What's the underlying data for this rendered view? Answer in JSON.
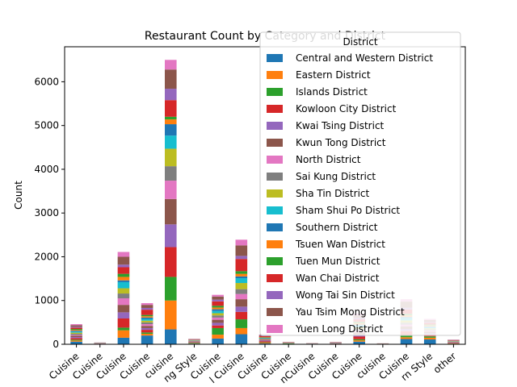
{
  "chart_data": {
    "type": "bar",
    "stacked": true,
    "title": "Restaurant Count by Category and District",
    "xlabel": "",
    "ylabel": "Count",
    "ylim": [
      0,
      6800
    ],
    "yticks": [
      0,
      1000,
      2000,
      3000,
      4000,
      5000,
      6000
    ],
    "grid": false,
    "legend": {
      "title": "District",
      "placement": "top-right"
    },
    "categories": [
      "Cuisine",
      "Cuisine",
      "Cuisine",
      "Cuisine",
      "cuisine",
      "ng Style",
      "Cuisine",
      "l Cuisine",
      "Cuisine",
      "Cuisine",
      "nCuisine",
      "Cuisine",
      "Cuisine",
      "cuisine",
      "Cuisine",
      "rn Style",
      "other"
    ],
    "series": [
      {
        "name": "Central and Western District",
        "color": "#1f77b4",
        "values": [
          60,
          5,
          150,
          200,
          340,
          15,
          130,
          230,
          20,
          6,
          3,
          5,
          60,
          2,
          120,
          110,
          10
        ]
      },
      {
        "name": "Eastern District",
        "color": "#ff7f0e",
        "values": [
          25,
          2,
          170,
          40,
          660,
          8,
          90,
          140,
          15,
          5,
          2,
          4,
          30,
          1,
          40,
          40,
          6
        ]
      },
      {
        "name": "Islands District",
        "color": "#2ca02c",
        "values": [
          20,
          2,
          60,
          30,
          540,
          12,
          150,
          200,
          10,
          8,
          2,
          3,
          25,
          1,
          50,
          30,
          5
        ]
      },
      {
        "name": "Kowloon City District",
        "color": "#d62728",
        "values": [
          35,
          3,
          210,
          60,
          680,
          10,
          60,
          170,
          25,
          4,
          3,
          5,
          60,
          2,
          90,
          45,
          10
        ]
      },
      {
        "name": "Kwai Tsing District",
        "color": "#9467bd",
        "values": [
          25,
          2,
          140,
          40,
          520,
          8,
          60,
          120,
          15,
          3,
          2,
          3,
          40,
          1,
          50,
          30,
          6
        ]
      },
      {
        "name": "Kwun Tong District",
        "color": "#8c564b",
        "values": [
          30,
          3,
          170,
          50,
          580,
          10,
          70,
          170,
          15,
          3,
          2,
          4,
          55,
          1,
          60,
          35,
          8
        ]
      },
      {
        "name": "North District",
        "color": "#e377c2",
        "values": [
          20,
          2,
          150,
          40,
          420,
          6,
          50,
          120,
          10,
          2,
          1,
          2,
          40,
          1,
          40,
          25,
          5
        ]
      },
      {
        "name": "Sai Kung District",
        "color": "#7f7f7f",
        "values": [
          25,
          2,
          110,
          40,
          330,
          5,
          50,
          110,
          10,
          2,
          1,
          3,
          40,
          1,
          45,
          25,
          5
        ]
      },
      {
        "name": "Sha Tin District",
        "color": "#bcbd22",
        "values": [
          25,
          2,
          120,
          40,
          400,
          6,
          50,
          140,
          10,
          2,
          1,
          3,
          40,
          1,
          50,
          25,
          5
        ]
      },
      {
        "name": "Sham Shui Po District",
        "color": "#17becf",
        "values": [
          25,
          2,
          140,
          40,
          300,
          5,
          50,
          110,
          10,
          2,
          1,
          3,
          40,
          1,
          55,
          25,
          5
        ]
      },
      {
        "name": "Southern District",
        "color": "#1f77b4",
        "values": [
          20,
          2,
          40,
          30,
          260,
          5,
          40,
          40,
          8,
          2,
          1,
          2,
          20,
          1,
          25,
          20,
          4
        ]
      },
      {
        "name": "Tsuen Wan District",
        "color": "#ff7f0e",
        "values": [
          20,
          2,
          80,
          30,
          110,
          4,
          40,
          60,
          8,
          2,
          1,
          2,
          30,
          1,
          35,
          20,
          4
        ]
      },
      {
        "name": "Tuen Mun District",
        "color": "#2ca02c",
        "values": [
          20,
          2,
          70,
          30,
          60,
          4,
          40,
          60,
          8,
          2,
          1,
          2,
          30,
          1,
          35,
          20,
          4
        ]
      },
      {
        "name": "Wan Chai District",
        "color": "#d62728",
        "values": [
          30,
          3,
          150,
          120,
          380,
          8,
          100,
          280,
          20,
          4,
          2,
          4,
          60,
          2,
          100,
          40,
          8
        ]
      },
      {
        "name": "Wong Tai Sin District",
        "color": "#9467bd",
        "values": [
          20,
          2,
          60,
          40,
          260,
          4,
          40,
          70,
          8,
          2,
          1,
          2,
          30,
          1,
          40,
          20,
          4
        ]
      },
      {
        "name": "Yau Tsim Mong District",
        "color": "#8c564b",
        "values": [
          35,
          3,
          180,
          70,
          440,
          8,
          70,
          240,
          20,
          4,
          2,
          4,
          60,
          2,
          140,
          45,
          10
        ]
      },
      {
        "name": "Yuen Long District",
        "color": "#e377c2",
        "values": [
          25,
          2,
          110,
          40,
          220,
          5,
          40,
          130,
          10,
          3,
          1,
          3,
          40,
          1,
          55,
          25,
          6
        ]
      }
    ]
  }
}
